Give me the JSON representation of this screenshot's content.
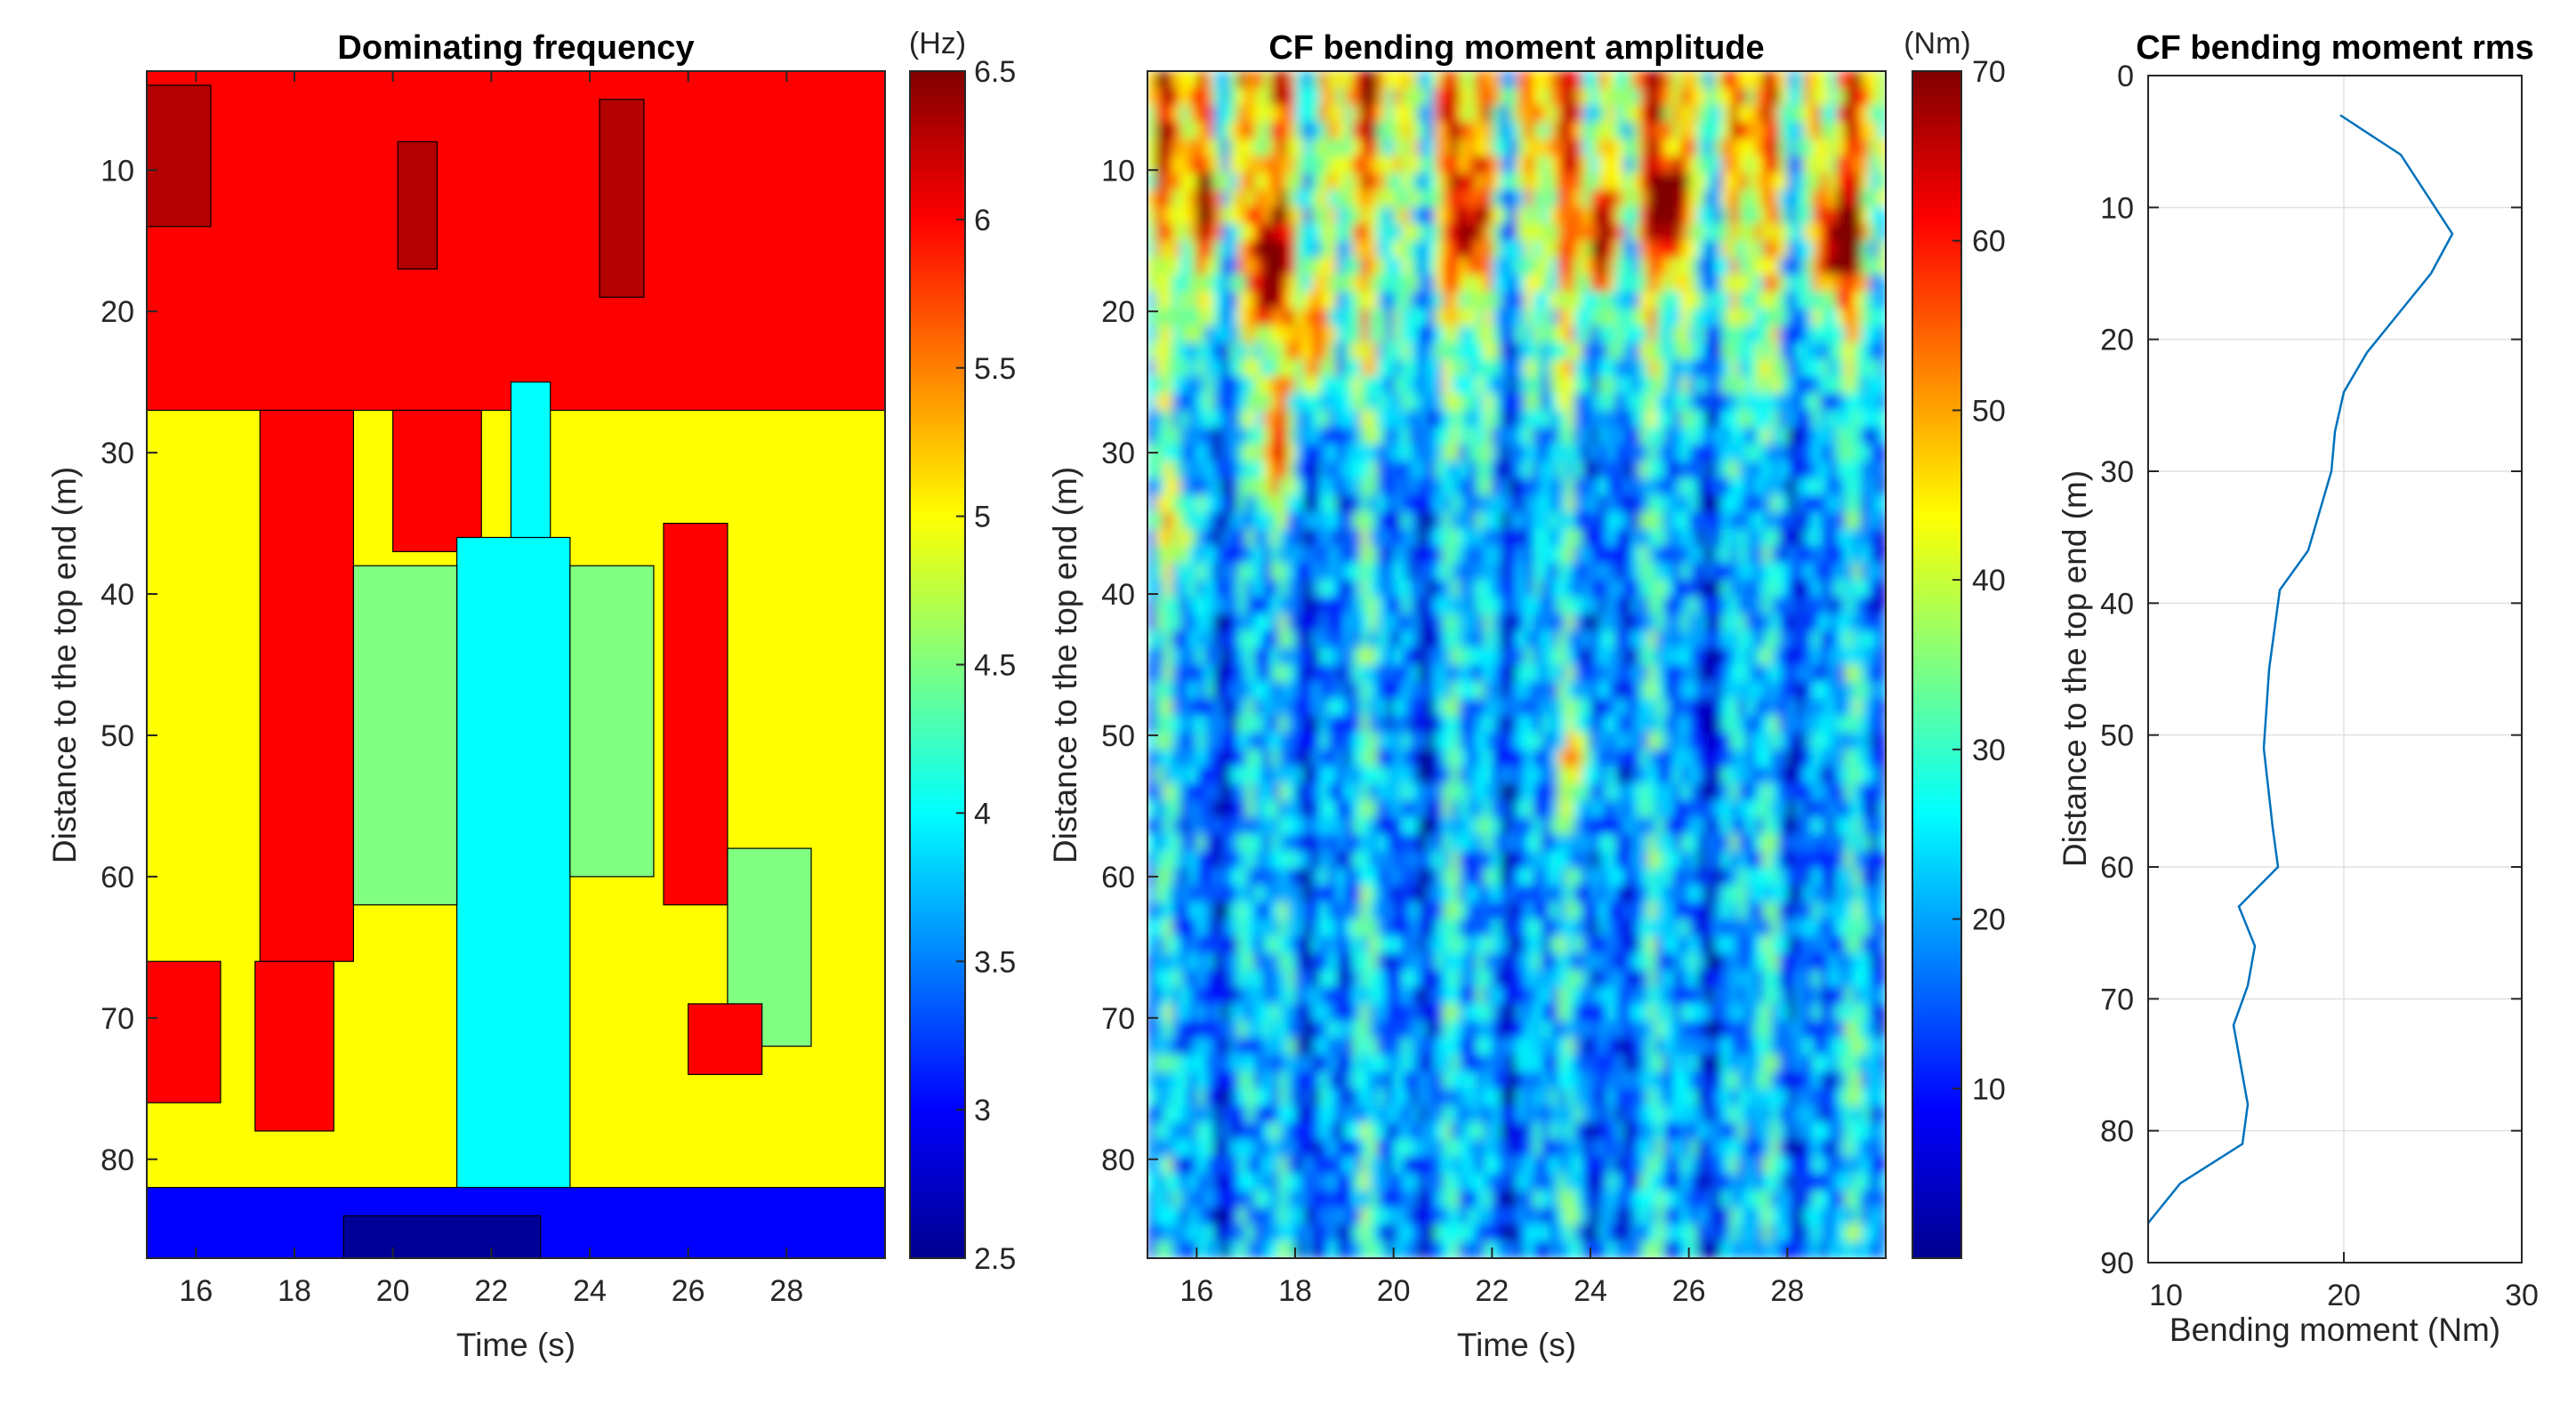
{
  "chart_data": [
    {
      "type": "heatmap",
      "title": "Dominating frequency",
      "xlabel": "Time (s)",
      "ylabel": "Distance to the top end (m)",
      "xlim": [
        15,
        30
      ],
      "ylim": [
        87,
        3
      ],
      "xticks": [
        16,
        18,
        20,
        22,
        24,
        26,
        28
      ],
      "yticks": [
        10,
        20,
        30,
        40,
        50,
        60,
        70,
        80
      ],
      "colorbar": {
        "unit": "(Hz)",
        "range": [
          2.5,
          6.5
        ],
        "ticks": [
          "6.5",
          "6",
          "5.5",
          "5",
          "4.5",
          "4",
          "3.5",
          "3",
          "2.5"
        ],
        "colormap": "jet"
      },
      "description": "Filled contour of dominating frequency; high (~6 Hz, red) near the top and in vertical bands, ~5 Hz (yellow) in the middle, ~4 Hz (cyan) near 22 s at depth",
      "regions": [
        {
          "t": [
            15,
            30
          ],
          "d": [
            3,
            87
          ],
          "hz": 5.0
        },
        {
          "t": [
            15,
            30
          ],
          "d": [
            3,
            27
          ],
          "hz": 6.0
        },
        {
          "t": [
            15,
            16.3
          ],
          "d": [
            4,
            14
          ],
          "hz": 6.3
        },
        {
          "t": [
            17.3,
            19.2
          ],
          "d": [
            27,
            66
          ],
          "hz": 6.0
        },
        {
          "t": [
            17.2,
            18.8
          ],
          "d": [
            66,
            78
          ],
          "hz": 6.0
        },
        {
          "t": [
            20.0,
            21.8
          ],
          "d": [
            27,
            37
          ],
          "hz": 6.0
        },
        {
          "t": [
            20.1,
            20.9
          ],
          "d": [
            8,
            17
          ],
          "hz": 6.3
        },
        {
          "t": [
            21.3,
            23.6
          ],
          "d": [
            36,
            82
          ],
          "hz": 4.0
        },
        {
          "t": [
            22.4,
            23.2
          ],
          "d": [
            25,
            36
          ],
          "hz": 4.0
        },
        {
          "t": [
            24.2,
            25.1
          ],
          "d": [
            5,
            19
          ],
          "hz": 6.3
        },
        {
          "t": [
            25.5,
            26.8
          ],
          "d": [
            35,
            62
          ],
          "hz": 6.0
        },
        {
          "t": [
            19.2,
            21.3
          ],
          "d": [
            38,
            62
          ],
          "hz": 4.5
        },
        {
          "t": [
            23.6,
            25.3
          ],
          "d": [
            38,
            60
          ],
          "hz": 4.5
        },
        {
          "t": [
            26.8,
            28.5
          ],
          "d": [
            58,
            72
          ],
          "hz": 4.5
        },
        {
          "t": [
            15,
            16.5
          ],
          "d": [
            66,
            76
          ],
          "hz": 6.0
        },
        {
          "t": [
            26.0,
            27.5
          ],
          "d": [
            69,
            74
          ],
          "hz": 6.0
        },
        {
          "t": [
            15,
            30
          ],
          "d": [
            82,
            87
          ],
          "hz": 3.0
        },
        {
          "t": [
            19.0,
            23.0
          ],
          "d": [
            84,
            87
          ],
          "hz": 2.6
        }
      ]
    },
    {
      "type": "heatmap",
      "title": "CF bending moment amplitude",
      "xlabel": "Time (s)",
      "ylabel": "Distance to the top end (m)",
      "xlim": [
        15,
        30
      ],
      "ylim": [
        87,
        3
      ],
      "xticks": [
        16,
        18,
        20,
        22,
        24,
        26,
        28
      ],
      "yticks": [
        10,
        20,
        30,
        40,
        50,
        60,
        70,
        80
      ],
      "colorbar": {
        "unit": "(Nm)",
        "range": [
          0,
          70
        ],
        "ticks": [
          "70",
          "60",
          "50",
          "40",
          "30",
          "20",
          "10"
        ],
        "colormap": "jet"
      },
      "description": "Filled contour of cross-flow bending moment amplitude; strongest (50-70 Nm) in the upper 10-30 m, mostly 0-30 Nm below, with vertical streaks over time",
      "hotspots": [
        {
          "t": 17.5,
          "d": 17,
          "nm": 68
        },
        {
          "t": 16.2,
          "d": 13,
          "nm": 55
        },
        {
          "t": 18.3,
          "d": 22,
          "nm": 60
        },
        {
          "t": 21.5,
          "d": 14,
          "nm": 55
        },
        {
          "t": 24.2,
          "d": 15,
          "nm": 65
        },
        {
          "t": 25.6,
          "d": 13,
          "nm": 62
        },
        {
          "t": 29.0,
          "d": 15,
          "nm": 68
        },
        {
          "t": 17.6,
          "d": 30,
          "nm": 50
        },
        {
          "t": 23.7,
          "d": 52,
          "nm": 40
        },
        {
          "t": 15.6,
          "d": 35,
          "nm": 42
        }
      ]
    },
    {
      "type": "line",
      "title": "CF bending moment rms",
      "xlabel": "Bending moment (Nm)",
      "ylabel": "Distance to the top end (m)",
      "xlim": [
        9,
        30
      ],
      "ylim": [
        90,
        0
      ],
      "xticks": [
        20,
        30
      ],
      "yticks": [
        0,
        10,
        20,
        30,
        40,
        50,
        60,
        70,
        80,
        90
      ],
      "grid": true,
      "series": [
        {
          "name": "rms",
          "x": [
            19.8,
            23.2,
            26.1,
            24.9,
            23.1,
            21.3,
            20.0,
            19.5,
            19.3,
            18.0,
            16.4,
            16.1,
            15.8,
            15.5,
            16.0,
            16.3,
            14.1,
            15.0,
            14.6,
            13.8,
            14.2,
            14.6,
            14.3,
            10.8,
            9.0
          ],
          "y": [
            3,
            6,
            12,
            15,
            18,
            21,
            24,
            27,
            30,
            36,
            39,
            42,
            45,
            51,
            57,
            60,
            63,
            66,
            69,
            72,
            75,
            78,
            81,
            84,
            87
          ]
        }
      ]
    }
  ]
}
